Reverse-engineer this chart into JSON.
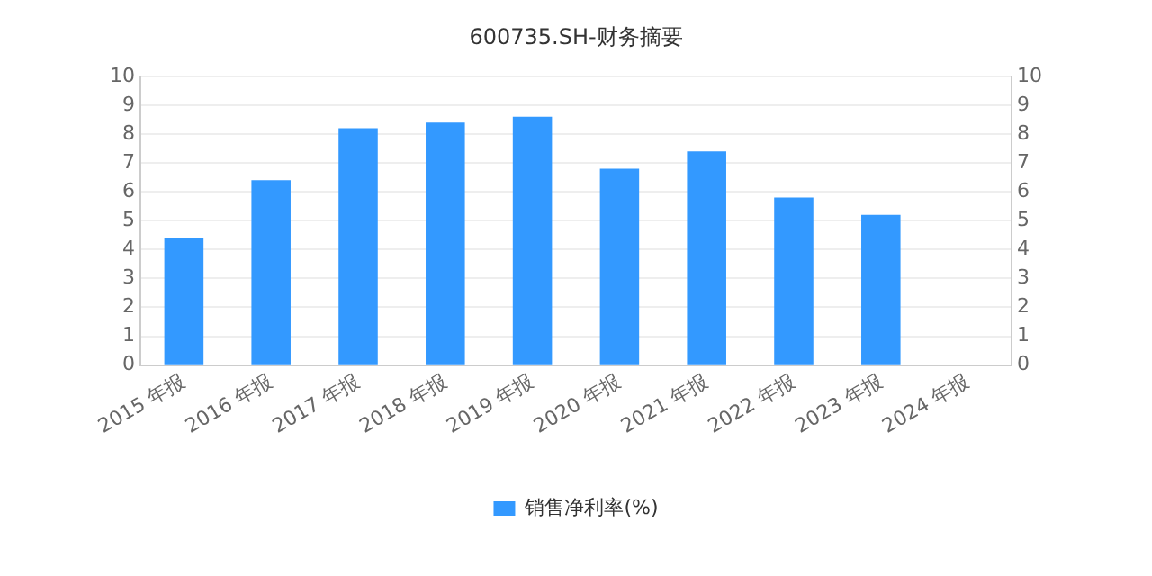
{
  "chart_data": {
    "type": "bar",
    "title": "600735.SH-财务摘要",
    "categories": [
      "2015 年报",
      "2016 年报",
      "2017 年报",
      "2018 年报",
      "2019 年报",
      "2020 年报",
      "2021 年报",
      "2022 年报",
      "2023 年报",
      "2024 年报"
    ],
    "series": [
      {
        "name": "销售净利率(%)",
        "color": "#3399ff",
        "values": [
          4.4,
          6.4,
          8.2,
          8.4,
          8.6,
          6.8,
          7.4,
          5.8,
          5.2,
          null
        ]
      }
    ],
    "ylim": [
      0,
      10
    ],
    "yticks": [
      0,
      1,
      2,
      3,
      4,
      5,
      6,
      7,
      8,
      9,
      10
    ],
    "y2lim": [
      0,
      10
    ],
    "y2ticks": [
      0,
      1,
      2,
      3,
      4,
      5,
      6,
      7,
      8,
      9,
      10
    ],
    "grid": "y",
    "legend": "bottom"
  }
}
